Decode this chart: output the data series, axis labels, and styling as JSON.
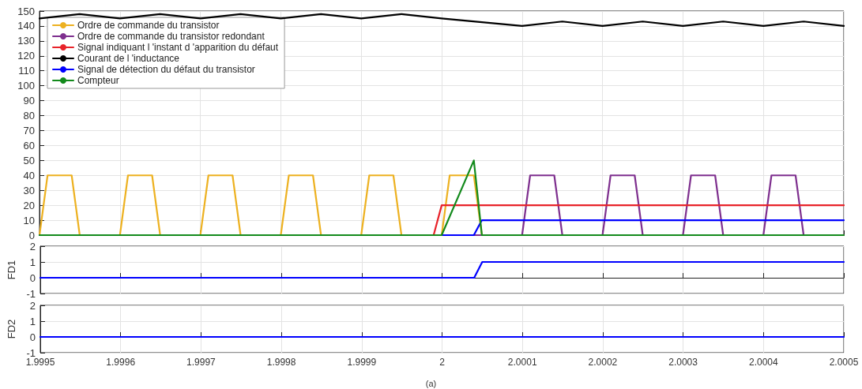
{
  "chart_data": [
    {
      "type": "line",
      "xlim": [
        1.9995,
        2.0005
      ],
      "xticks": [
        1.9995,
        1.9996,
        1.9997,
        1.9998,
        1.9999,
        2,
        2.0001,
        2.0002,
        2.0003,
        2.0004,
        2.0005
      ],
      "ylim": [
        0,
        150
      ],
      "yticks": [
        0,
        10,
        20,
        30,
        40,
        50,
        60,
        70,
        80,
        90,
        100,
        110,
        120,
        130,
        140,
        150
      ],
      "tick_labels": "y",
      "grid": true,
      "legend": "top left",
      "marker": "none",
      "line_style": "solid",
      "series": [
        {
          "name": "Ordre de commande du transistor",
          "color": "#edb120",
          "x": [
            1.9995,
            1.99951,
            1.99954,
            1.99955,
            1.9996,
            1.99961,
            1.99964,
            1.99965,
            1.9997,
            1.99971,
            1.99974,
            1.99975,
            1.9998,
            1.99981,
            1.99984,
            1.99985,
            1.9999,
            1.99991,
            1.99994,
            1.99995,
            2.0,
            2.00001,
            2.00004,
            2.00005,
            2.0005
          ],
          "values": [
            0,
            40,
            40,
            0,
            0,
            40,
            40,
            0,
            0,
            40,
            40,
            0,
            0,
            40,
            40,
            0,
            0,
            40,
            40,
            0,
            0,
            40,
            40,
            0,
            0
          ]
        },
        {
          "name": "Ordre de commande du transistor redondant",
          "color": "#7e2f8e",
          "x": [
            1.9995,
            2.0001,
            2.00011,
            2.00014,
            2.00015,
            2.0002,
            2.00021,
            2.00024,
            2.00025,
            2.0003,
            2.00031,
            2.00034,
            2.00035,
            2.0004,
            2.00041,
            2.00044,
            2.00045,
            2.0005
          ],
          "values": [
            0,
            0,
            40,
            40,
            0,
            0,
            40,
            40,
            0,
            0,
            40,
            40,
            0,
            0,
            40,
            40,
            0,
            0
          ]
        },
        {
          "name": "Signal indiquant l 'instant d 'apparition du défaut",
          "color": "#e8232a",
          "x": [
            1.9995,
            1.99999,
            2.0,
            2.0005
          ],
          "values": [
            0,
            0,
            20,
            20
          ]
        },
        {
          "name": "Courant de l 'inductance",
          "color": "#000000",
          "x": [
            1.9995,
            1.99955,
            1.9996,
            1.99965,
            1.9997,
            1.99975,
            1.9998,
            1.99985,
            1.9999,
            1.99995,
            2.0,
            2.0001,
            2.00015,
            2.0002,
            2.00025,
            2.0003,
            2.00035,
            2.0004,
            2.00045,
            2.0005
          ],
          "values": [
            145,
            148,
            145,
            148,
            145,
            148,
            145,
            148,
            145,
            148,
            145,
            140,
            143,
            140,
            143,
            140,
            143,
            140,
            143,
            140
          ]
        },
        {
          "name": "Signal de détection du défaut du transistor",
          "color": "#0000ff",
          "x": [
            1.9995,
            2.00004,
            2.00005,
            2.0005
          ],
          "values": [
            0,
            0,
            10,
            10
          ]
        },
        {
          "name": "Compteur",
          "color": "#138a1c",
          "x": [
            1.9995,
            2.0,
            2.00004,
            2.00005,
            2.0005
          ],
          "values": [
            0,
            0,
            50,
            0,
            0
          ]
        }
      ]
    },
    {
      "type": "line",
      "ylabel": "FD1",
      "xlim": [
        1.9995,
        2.0005
      ],
      "xticks": [
        1.9995,
        1.9996,
        1.9997,
        1.9998,
        1.9999,
        2,
        2.0001,
        2.0002,
        2.0003,
        2.0004,
        2.0005
      ],
      "ylim": [
        -1,
        2
      ],
      "yticks": [
        -1,
        0,
        1,
        2
      ],
      "tick_labels": "y",
      "grid": true,
      "marker": "none",
      "line_style": "solid",
      "series": [
        {
          "color": "#0000ff",
          "x": [
            1.9995,
            2.00004,
            2.00005,
            2.0005
          ],
          "values": [
            0,
            0,
            1,
            1
          ]
        }
      ]
    },
    {
      "type": "line",
      "ylabel": "FD2",
      "xlim": [
        1.9995,
        2.0005
      ],
      "xticks": [
        1.9995,
        1.9996,
        1.9997,
        1.9998,
        1.9999,
        2,
        2.0001,
        2.0002,
        2.0003,
        2.0004,
        2.0005
      ],
      "ylim": [
        -1,
        2
      ],
      "yticks": [
        -1,
        0,
        1,
        2
      ],
      "grid": true,
      "marker": "none",
      "line_style": "solid",
      "annotations": [
        "(a)"
      ],
      "series": [
        {
          "color": "#0000ff",
          "x": [
            1.9995,
            2.0005
          ],
          "values": [
            0,
            0
          ]
        }
      ]
    }
  ]
}
